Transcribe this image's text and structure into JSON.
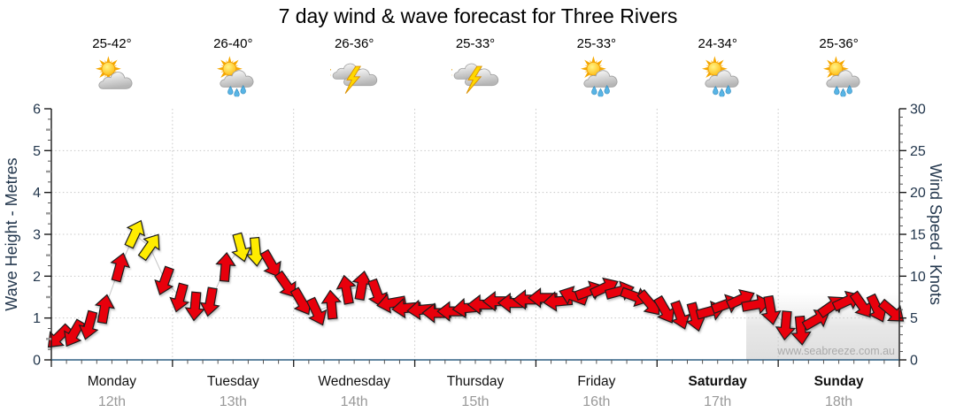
{
  "title": "7 day wind & wave forecast for Three Rivers",
  "watermark": "www.seabreeze.com.au",
  "colors": {
    "arrow_normal": "#e8000c",
    "arrow_strong": "#ffec00",
    "arrow_outline": "#1c1c1c",
    "axis_text": "#22364c",
    "axis_line": "#1a1a1a",
    "bottom_axis_line": "#2e5f82",
    "grid": "#c8c8c8",
    "minor_tick": "#555555",
    "half_tick": "#999999",
    "day_text": "#111111",
    "date_text": "#999999",
    "watermark_text": "#ababab"
  },
  "days": [
    {
      "name": "Monday",
      "date": "12th",
      "temp": "25-42°",
      "icon": "partly-cloudy",
      "icon_ref": "#icon-partly-cloudy",
      "name_class": "day-name"
    },
    {
      "name": "Tuesday",
      "date": "13th",
      "temp": "26-40°",
      "icon": "sun-showers",
      "icon_ref": "#icon-sun-showers",
      "name_class": "day-name"
    },
    {
      "name": "Wednesday",
      "date": "14th",
      "temp": "26-36°",
      "icon": "thunderstorm",
      "icon_ref": "#icon-thunderstorm",
      "name_class": "day-name"
    },
    {
      "name": "Thursday",
      "date": "15th",
      "temp": "25-33°",
      "icon": "thunderstorm",
      "icon_ref": "#icon-thunderstorm",
      "name_class": "day-name"
    },
    {
      "name": "Friday",
      "date": "16th",
      "temp": "25-33°",
      "icon": "sun-showers",
      "icon_ref": "#icon-sun-showers",
      "name_class": "day-name"
    },
    {
      "name": "Saturday",
      "date": "17th",
      "temp": "24-34°",
      "icon": "sun-showers",
      "icon_ref": "#icon-sun-showers",
      "name_class": "day-name bold"
    },
    {
      "name": "Sunday",
      "date": "18th",
      "temp": "25-36°",
      "icon": "sun-showers",
      "icon_ref": "#icon-sun-showers",
      "name_class": "day-name bold"
    }
  ],
  "chart_data": {
    "type": "wind-arrow-series",
    "x_days": [
      "Monday",
      "Tuesday",
      "Wednesday",
      "Thursday",
      "Friday",
      "Saturday",
      "Sunday"
    ],
    "x_dates": [
      "12th",
      "13th",
      "14th",
      "15th",
      "16th",
      "17th",
      "18th"
    ],
    "samples_per_day": 8,
    "y_left_axis": {
      "label": "Wave Height - Metres",
      "min": 0,
      "max": 6,
      "major_ticks": [
        0,
        1,
        2,
        3,
        4,
        5,
        6
      ]
    },
    "y_right_axis": {
      "label": "Wind Speed - Knots",
      "min": 0,
      "max": 30,
      "major_ticks": [
        0,
        5,
        10,
        15,
        20,
        25,
        30
      ]
    },
    "grid_horizontal_values_m": [
      1,
      2,
      3,
      4,
      5
    ],
    "arrow_format": [
      "wind_speed_knots",
      "screen_direction_deg_cw_from_up",
      "strong_flag"
    ],
    "strong_threshold_knots": 12,
    "wind_arrows": [
      [
        2.8,
        225,
        0
      ],
      [
        3.2,
        210,
        0
      ],
      [
        4.2,
        195,
        0
      ],
      [
        6.0,
        10,
        0
      ],
      [
        11.0,
        15,
        0
      ],
      [
        15.0,
        25,
        1
      ],
      [
        13.5,
        35,
        1
      ],
      [
        9.5,
        200,
        0
      ],
      [
        7.5,
        195,
        0
      ],
      [
        6.5,
        185,
        0
      ],
      [
        7.0,
        190,
        0
      ],
      [
        11.0,
        5,
        0
      ],
      [
        13.5,
        165,
        1
      ],
      [
        13.0,
        175,
        1
      ],
      [
        11.5,
        150,
        0
      ],
      [
        9.0,
        145,
        0
      ],
      [
        7.0,
        150,
        0
      ],
      [
        5.8,
        155,
        0
      ],
      [
        6.5,
        355,
        0
      ],
      [
        8.3,
        350,
        0
      ],
      [
        8.8,
        10,
        0
      ],
      [
        8.0,
        160,
        0
      ],
      [
        6.8,
        260,
        0
      ],
      [
        6.2,
        265,
        0
      ],
      [
        6.0,
        265,
        0
      ],
      [
        5.6,
        270,
        0
      ],
      [
        5.8,
        270,
        0
      ],
      [
        6.2,
        265,
        0
      ],
      [
        6.6,
        270,
        0
      ],
      [
        7.0,
        270,
        0
      ],
      [
        6.8,
        270,
        0
      ],
      [
        7.2,
        270,
        0
      ],
      [
        7.4,
        270,
        0
      ],
      [
        7.0,
        265,
        0
      ],
      [
        7.6,
        290,
        0
      ],
      [
        8.2,
        70,
        0
      ],
      [
        8.6,
        65,
        0
      ],
      [
        8.2,
        75,
        0
      ],
      [
        7.6,
        110,
        0
      ],
      [
        6.8,
        140,
        0
      ],
      [
        6.0,
        150,
        0
      ],
      [
        5.4,
        160,
        0
      ],
      [
        5.2,
        165,
        0
      ],
      [
        5.8,
        75,
        0
      ],
      [
        6.6,
        70,
        0
      ],
      [
        7.2,
        65,
        0
      ],
      [
        6.6,
        80,
        0
      ],
      [
        6.0,
        170,
        0
      ],
      [
        4.2,
        185,
        0
      ],
      [
        3.6,
        175,
        0
      ],
      [
        4.8,
        60,
        0
      ],
      [
        6.4,
        55,
        0
      ],
      [
        7.0,
        65,
        0
      ],
      [
        6.6,
        145,
        0
      ],
      [
        6.2,
        155,
        0
      ],
      [
        5.8,
        130,
        0
      ]
    ]
  }
}
